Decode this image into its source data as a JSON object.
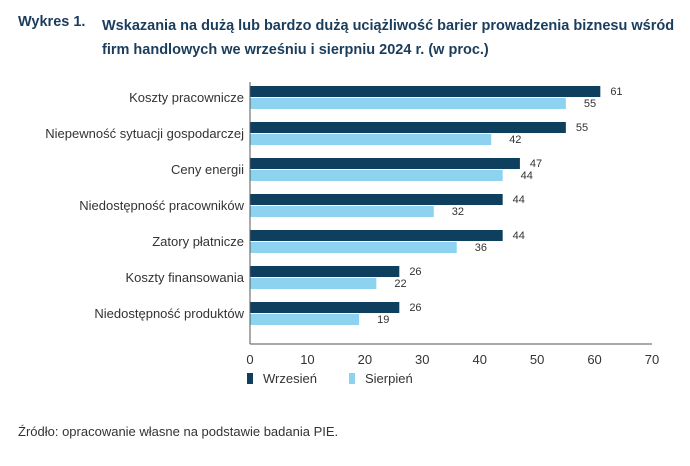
{
  "title": {
    "number": "Wykres 1.",
    "text": "Wskazania na dużą lub bardzo dużą uciążliwość barier prowadzenia biznesu wśród firm handlowych we wrześniu i sierpniu 2024 r. (w proc.)"
  },
  "source": "Źródło: opracowanie własne na podstawie badania PIE.",
  "colors": {
    "wrzesien": "#0e3f5e",
    "sierpien": "#8dd3ef",
    "axis": "#555555"
  },
  "chart_data": {
    "type": "bar",
    "orientation": "horizontal",
    "categories": [
      "Koszty pracownicze",
      "Niepewność sytuacji gospodarczej",
      "Ceny energii",
      "Niedostępność pracowników",
      "Zatory płatnicze",
      "Koszty finansowania",
      "Niedostępność produktów"
    ],
    "series": [
      {
        "name": "Wrzesień",
        "values": [
          61,
          55,
          47,
          44,
          44,
          26,
          26
        ]
      },
      {
        "name": "Sierpień",
        "values": [
          55,
          42,
          44,
          32,
          36,
          22,
          19
        ]
      }
    ],
    "xlim": [
      0,
      70
    ],
    "xticks": [
      "0",
      "10",
      "20",
      "30",
      "40",
      "50",
      "60",
      "70"
    ],
    "legend": "bottom-left",
    "grid": false
  }
}
